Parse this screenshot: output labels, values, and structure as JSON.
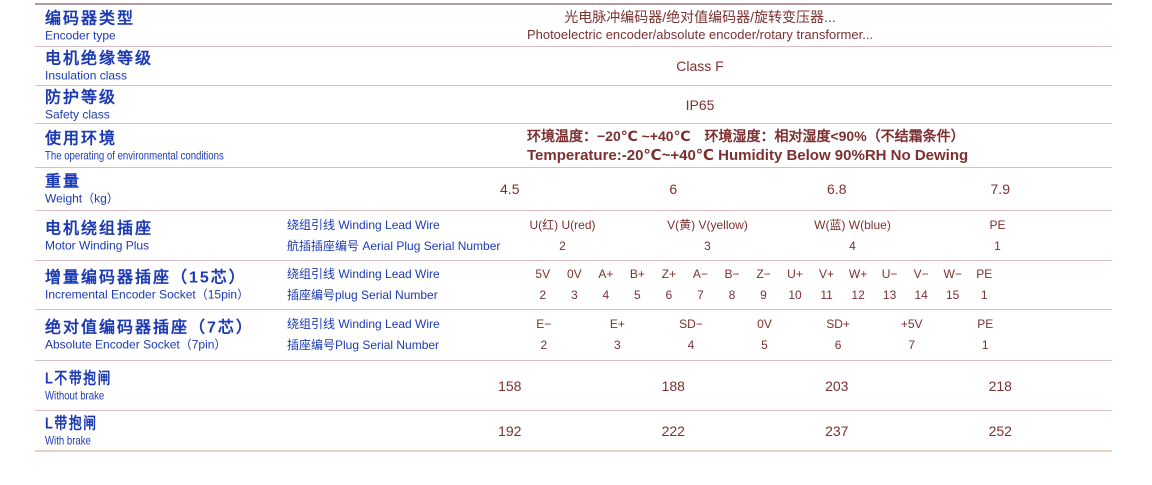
{
  "colors": {
    "label_blue": "#1c3ab5",
    "value_maroon": "#7d3030",
    "border_top": "#b59aa0",
    "border_row": "#d9bfc3",
    "border_bottom": "#e8cec3"
  },
  "rows": [
    {
      "label_zh": "编码器类型",
      "label_en": "Encoder type",
      "value_zh": "光电脉冲编码器/绝对值编码器/旋转变压器...",
      "value_en": "Photoelectric encoder/absolute encoder/rotary transformer..."
    },
    {
      "label_zh": "电机绝缘等级",
      "label_en": "Insulation class",
      "value": "Class F"
    },
    {
      "label_zh": "防护等级",
      "label_en": "Safety class",
      "value": "IP65"
    },
    {
      "label_zh": "使用环境",
      "label_en": "The operating of environmental conditions",
      "value_zh": "环境温度：−20℃ ~+40℃　环境湿度：相对湿度<90%（不结霜条件）",
      "value_en": "Temperature:-20℃~+40℃  Humidity Below 90%RH No Dewing"
    },
    {
      "label_zh": "重量",
      "label_en": "Weight（kg）",
      "values": [
        "4.5",
        "6",
        "6.8",
        "7.9"
      ]
    },
    {
      "label_zh": "电机绕组插座",
      "label_en": "Motor Winding Plus",
      "sub_line1": "绕组引线 Winding Lead Wire",
      "sub_line2": "航插插座编号 Aerial Plug Serial Number",
      "pins": [
        {
          "name": "U(红) U(red)",
          "num": "2"
        },
        {
          "name": "V(黄) V(yellow)",
          "num": "3"
        },
        {
          "name": "W(蓝) W(blue)",
          "num": "4"
        },
        {
          "name": "PE",
          "num": "1"
        }
      ]
    },
    {
      "label_zh": "增量编码器插座（15芯）",
      "label_en": "Incremental Encoder Socket（15pin）",
      "sub_line1": "绕组引线 Winding Lead Wire",
      "sub_line2": "插座编号plug Serial Number",
      "pins": [
        {
          "name": "5V",
          "num": "2"
        },
        {
          "name": "0V",
          "num": "3"
        },
        {
          "name": "A+",
          "num": "4"
        },
        {
          "name": "B+",
          "num": "5"
        },
        {
          "name": "Z+",
          "num": "6"
        },
        {
          "name": "A−",
          "num": "7"
        },
        {
          "name": "B−",
          "num": "8"
        },
        {
          "name": "Z−",
          "num": "9"
        },
        {
          "name": "U+",
          "num": "10"
        },
        {
          "name": "V+",
          "num": "11"
        },
        {
          "name": "W+",
          "num": "12"
        },
        {
          "name": "U−",
          "num": "13"
        },
        {
          "name": "V−",
          "num": "14"
        },
        {
          "name": "W−",
          "num": "15"
        },
        {
          "name": "PE",
          "num": "1"
        }
      ]
    },
    {
      "label_zh": "绝对值编码器插座（7芯）",
      "label_en": "Absolute Encoder Socket（7pin）",
      "sub_line1": "绕组引线 Winding Lead Wire",
      "sub_line2": "插座编号Plug Serial Number",
      "pins": [
        {
          "name": "E−",
          "num": "2"
        },
        {
          "name": "E+",
          "num": "3"
        },
        {
          "name": "SD−",
          "num": "4"
        },
        {
          "name": "0V",
          "num": "5"
        },
        {
          "name": "SD+",
          "num": "6"
        },
        {
          "name": "+5V",
          "num": "7"
        },
        {
          "name": "PE",
          "num": "1"
        }
      ]
    },
    {
      "label_zh": "L不带抱闸",
      "label_en": "Without brake",
      "values": [
        "158",
        "188",
        "203",
        "218"
      ]
    },
    {
      "label_zh": "L带抱闸",
      "label_en": "With brake",
      "values": [
        "192",
        "222",
        "237",
        "252"
      ]
    }
  ]
}
